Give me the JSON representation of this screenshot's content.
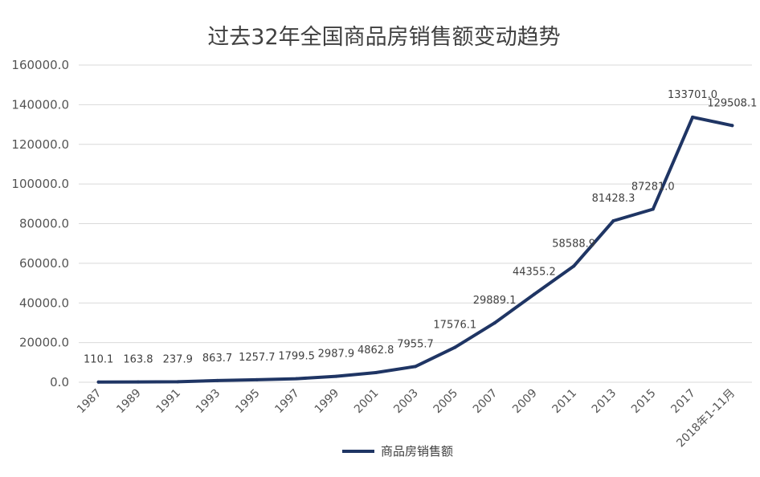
{
  "chart_data": {
    "type": "line",
    "title": "过去32年全国商品房销售额变动趋势",
    "categories": [
      "1987",
      "1989",
      "1991",
      "1993",
      "1995",
      "1997",
      "1999",
      "2001",
      "2003",
      "2005",
      "2007",
      "2009",
      "2011",
      "2013",
      "2015",
      "2017",
      "2018年1-11月"
    ],
    "series": [
      {
        "name": "商品房销售额",
        "color": "#1f3564",
        "values": [
          110.1,
          163.8,
          237.9,
          863.7,
          1257.7,
          1799.5,
          2987.9,
          4862.8,
          7955.7,
          17576.1,
          29889.1,
          44355.2,
          58588.9,
          81428.3,
          87281.0,
          133701.0,
          129508.1
        ],
        "labels": [
          "110.1",
          "163.8",
          "237.9",
          "863.7",
          "1257.7",
          "1799.5",
          "2987.9",
          "4862.8",
          "7955.7",
          "17576.1",
          "29889.1",
          "44355.2",
          "58588.9",
          "81428.3",
          "87281.0",
          "133701.0",
          "129508.1"
        ]
      }
    ],
    "y_ticks": [
      "0.0",
      "20000.0",
      "40000.0",
      "60000.0",
      "80000.0",
      "100000.0",
      "120000.0",
      "140000.0",
      "160000.0"
    ],
    "ylim": [
      0,
      160000
    ],
    "xlabel": "",
    "ylabel": "",
    "grid": true,
    "legend": "bottom"
  }
}
